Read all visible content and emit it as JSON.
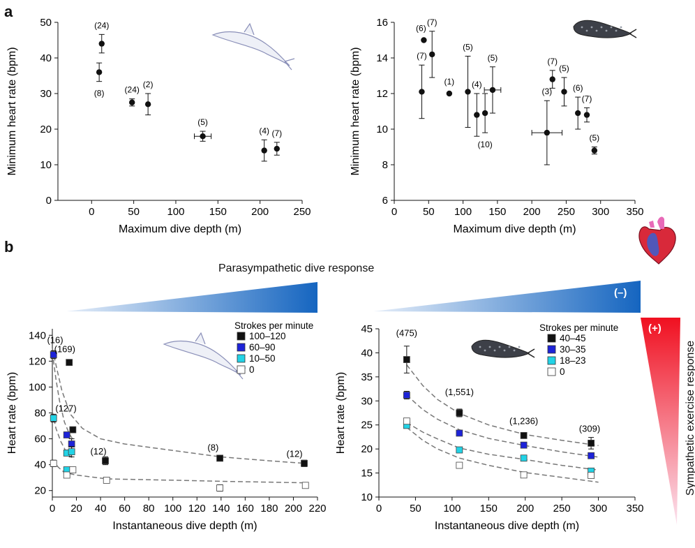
{
  "panels": {
    "a": "a",
    "b": "b"
  },
  "response_labels": {
    "parasympathetic": "Parasympathetic dive response",
    "sympathetic": "Sympathetic exercise response",
    "minus": "(–)",
    "plus": "(+)"
  },
  "colors": {
    "black": "#111111",
    "blue": "#1d23d8",
    "cyan": "#22d3e6",
    "white": "#ffffff",
    "para_gradient_end": "#1565c0",
    "para_gradient_start": "#d8e4f5",
    "symp_gradient_top": "#f01020",
    "symp_gradient_bottom": "#fbe0ee"
  },
  "icons": {
    "dolphin": "dolphin-illustration",
    "seal": "seal-illustration",
    "heart": "heart-illustration"
  },
  "chart_data": [
    {
      "id": "a-left",
      "type": "scatter",
      "title": "",
      "xlabel": "Maximum dive depth (m)",
      "ylabel": "Minimum heart rate (bpm)",
      "xlim": [
        -40,
        250
      ],
      "ylim": [
        0,
        50
      ],
      "xticks": [
        0,
        50,
        100,
        150,
        200,
        250
      ],
      "yticks": [
        0,
        10,
        20,
        30,
        40,
        50
      ],
      "points": [
        {
          "x": 12,
          "y": 44,
          "yerr": 2.6,
          "label": "(24)",
          "label_pos": "above"
        },
        {
          "x": 9,
          "y": 36,
          "yerr": 2.6,
          "label": "(8)",
          "label_pos": "below"
        },
        {
          "x": 48,
          "y": 27.5,
          "yerr": 1,
          "label": "(24)",
          "label_pos": "above"
        },
        {
          "x": 67,
          "y": 27,
          "yerr": 3,
          "label": "(2)",
          "label_pos": "above"
        },
        {
          "x": 132,
          "y": 18,
          "yerr": 1.4,
          "xerr": 10,
          "label": "(5)",
          "label_pos": "above"
        },
        {
          "x": 205,
          "y": 14,
          "yerr": 3,
          "label": "(4)",
          "label_pos": "above"
        },
        {
          "x": 220,
          "y": 14.5,
          "yerr": 1.8,
          "label": "(7)",
          "label_pos": "above"
        }
      ]
    },
    {
      "id": "a-right",
      "type": "scatter",
      "title": "",
      "xlabel": "Maximum dive depth (m)",
      "ylabel": "Minimum heart rate (bpm)",
      "xlim": [
        0,
        350
      ],
      "ylim": [
        6,
        16
      ],
      "xticks": [
        0,
        50,
        100,
        150,
        200,
        250,
        300,
        350
      ],
      "yticks": [
        6,
        8,
        10,
        12,
        14,
        16
      ],
      "points": [
        {
          "x": 43,
          "y": 15,
          "yerr": 0,
          "label": "(6)",
          "label_pos": "above",
          "label_dx": -4
        },
        {
          "x": 55,
          "y": 14.2,
          "yerr": 1.3,
          "label": "(7)",
          "label_pos": "above"
        },
        {
          "x": 40,
          "y": 12.1,
          "yerr": 1.5,
          "label": "(7)",
          "label_pos": "above"
        },
        {
          "x": 80,
          "y": 12,
          "yerr": 0,
          "label": "(1)",
          "label_pos": "above"
        },
        {
          "x": 107,
          "y": 12.1,
          "yerr": 2,
          "label": "(5)",
          "label_pos": "above"
        },
        {
          "x": 120,
          "y": 10.8,
          "yerr": 1.2,
          "label": "(4)",
          "label_pos": "above"
        },
        {
          "x": 132,
          "y": 10.9,
          "yerr": 1.1,
          "label": "(10)",
          "label_pos": "below"
        },
        {
          "x": 143,
          "y": 12.2,
          "yerr": 1.3,
          "xerr": 12,
          "label": "(5)",
          "label_pos": "above"
        },
        {
          "x": 222,
          "y": 9.8,
          "yerr": 1.8,
          "xerr": 22,
          "label": "(3)",
          "label_pos": "above"
        },
        {
          "x": 230,
          "y": 12.8,
          "yerr": 0.5,
          "label": "(7)",
          "label_pos": "above"
        },
        {
          "x": 247,
          "y": 12.1,
          "yerr": 0.8,
          "label": "(5)",
          "label_pos": "above"
        },
        {
          "x": 267,
          "y": 10.9,
          "yerr": 0.9,
          "label": "(6)",
          "label_pos": "above"
        },
        {
          "x": 280,
          "y": 10.8,
          "yerr": 0.4,
          "label": "(7)",
          "label_pos": "above"
        },
        {
          "x": 291,
          "y": 8.8,
          "yerr": 0.2,
          "label": "(5)",
          "label_pos": "above"
        }
      ]
    },
    {
      "id": "b-left",
      "type": "scatter",
      "title": "",
      "xlabel": "Instantaneous dive depth (m)",
      "ylabel": "Heart rate (bpm)",
      "xlim": [
        0,
        220
      ],
      "ylim": [
        15,
        145
      ],
      "xticks": [
        0,
        20,
        40,
        60,
        80,
        100,
        120,
        140,
        160,
        180,
        200,
        220
      ],
      "yticks": [
        20,
        40,
        60,
        80,
        100,
        120,
        140
      ],
      "legend": {
        "title": "Strokes per minute",
        "entries": [
          {
            "label": "100–120",
            "color": "black"
          },
          {
            "label": "60–90",
            "color": "blue"
          },
          {
            "label": "10–50",
            "color": "cyan"
          },
          {
            "label": "0",
            "color": "white"
          }
        ]
      },
      "annotations": [
        {
          "text": "(16)",
          "x": 0,
          "y": 134,
          "dx": 4
        },
        {
          "text": "(169)",
          "x": 8,
          "y": 127,
          "dx": 4
        },
        {
          "text": "(127)",
          "x": 9,
          "y": 81,
          "dx": 4
        },
        {
          "text": "(12)",
          "x": 44,
          "y": 48,
          "dx": -10
        },
        {
          "text": "(8)",
          "x": 138,
          "y": 51,
          "dx": -8
        },
        {
          "text": "(12)",
          "x": 209,
          "y": 46,
          "dx": -14
        }
      ],
      "series": [
        {
          "color": "black",
          "points": [
            {
              "x": 14,
              "y": 119
            },
            {
              "x": 17,
              "y": 67
            },
            {
              "x": 44,
              "y": 43,
              "yerr": 3
            },
            {
              "x": 139,
              "y": 45
            },
            {
              "x": 209,
              "y": 41,
              "yerr": 2.5
            }
          ]
        },
        {
          "color": "blue",
          "points": [
            {
              "x": 1,
              "y": 125,
              "yerr": 3
            },
            {
              "x": 12,
              "y": 63
            },
            {
              "x": 16,
              "y": 56,
              "yerr": 4
            }
          ]
        },
        {
          "color": "cyan",
          "points": [
            {
              "x": 1,
              "y": 76,
              "yerr": 3
            },
            {
              "x": 12,
              "y": 49
            },
            {
              "x": 16,
              "y": 50,
              "yerr": 4
            },
            {
              "x": 12,
              "y": 36
            }
          ]
        },
        {
          "color": "white",
          "points": [
            {
              "x": 1,
              "y": 41,
              "yerr": 2.5
            },
            {
              "x": 12,
              "y": 32
            },
            {
              "x": 17,
              "y": 36
            },
            {
              "x": 45,
              "y": 28
            },
            {
              "x": 139,
              "y": 22,
              "yerr": 2.5
            },
            {
              "x": 210,
              "y": 24
            }
          ]
        }
      ],
      "curves": [
        {
          "points": [
            [
              0,
              130
            ],
            [
              4,
              113
            ],
            [
              8,
              97
            ],
            [
              15,
              79
            ],
            [
              25,
              68
            ],
            [
              40,
              60
            ],
            [
              60,
              56
            ],
            [
              100,
              51
            ],
            [
              140,
              46
            ],
            [
              180,
              43
            ],
            [
              210,
              41
            ]
          ]
        },
        {
          "points": [
            [
              0,
              127
            ],
            [
              3,
              106
            ],
            [
              6,
              89
            ],
            [
              10,
              73
            ],
            [
              14,
              64
            ],
            [
              18,
              58
            ]
          ]
        },
        {
          "points": [
            [
              0,
              81
            ],
            [
              3,
              68
            ],
            [
              7,
              58
            ],
            [
              12,
              49
            ],
            [
              18,
              44
            ]
          ]
        },
        {
          "points": [
            [
              0,
              44
            ],
            [
              5,
              38
            ],
            [
              10,
              34
            ],
            [
              20,
              32
            ],
            [
              45,
              29
            ],
            [
              100,
              28
            ],
            [
              150,
              27
            ],
            [
              210,
              26
            ]
          ]
        }
      ]
    },
    {
      "id": "b-right",
      "type": "scatter",
      "title": "",
      "xlabel": "Instantaneous dive depth (m)",
      "ylabel": "Heart rate (bpm)",
      "xlim": [
        0,
        350
      ],
      "ylim": [
        10,
        45
      ],
      "xticks": [
        0,
        50,
        100,
        150,
        200,
        250,
        300,
        350
      ],
      "yticks": [
        10,
        15,
        20,
        25,
        30,
        35,
        40,
        45
      ],
      "legend": {
        "title": "Strokes per minute",
        "entries": [
          {
            "label": "40–45",
            "color": "black"
          },
          {
            "label": "30–35",
            "color": "blue"
          },
          {
            "label": "18–23",
            "color": "cyan"
          },
          {
            "label": "0",
            "color": "white"
          }
        ]
      },
      "annotations": [
        {
          "text": "(475)",
          "x": 38,
          "y": 43.5,
          "dx": 0
        },
        {
          "text": "(1,551)",
          "x": 110,
          "y": 31.2,
          "dx": 0
        },
        {
          "text": "(1,236)",
          "x": 198,
          "y": 25.2,
          "dx": 0
        },
        {
          "text": "(309)",
          "x": 288,
          "y": 23.6,
          "dx": 0
        }
      ],
      "series": [
        {
          "color": "black",
          "points": [
            {
              "x": 38,
              "y": 38.6,
              "yerr": 2.8
            },
            {
              "x": 110,
              "y": 27.5,
              "yerr": 0.8
            },
            {
              "x": 198,
              "y": 22.8,
              "yerr": 0.4
            },
            {
              "x": 290,
              "y": 21.2,
              "yerr": 1.2
            }
          ]
        },
        {
          "color": "blue",
          "points": [
            {
              "x": 38,
              "y": 31.2,
              "yerr": 0.8
            },
            {
              "x": 110,
              "y": 23.3,
              "yerr": 0.4
            },
            {
              "x": 198,
              "y": 20.8,
              "yerr": 0.3
            },
            {
              "x": 290,
              "y": 18.6,
              "yerr": 0.6
            }
          ]
        },
        {
          "color": "cyan",
          "points": [
            {
              "x": 38,
              "y": 24.9,
              "yerr": 0.4
            },
            {
              "x": 110,
              "y": 19.8,
              "yerr": 0.3
            },
            {
              "x": 198,
              "y": 18.1,
              "yerr": 0.4
            },
            {
              "x": 290,
              "y": 15.4,
              "yerr": 0.4
            }
          ]
        },
        {
          "color": "white",
          "points": [
            {
              "x": 38,
              "y": 25.8,
              "yerr": 0.6
            },
            {
              "x": 110,
              "y": 16.6,
              "yerr": 0.3
            },
            {
              "x": 198,
              "y": 14.6,
              "yerr": 0.3
            },
            {
              "x": 290,
              "y": 14.5,
              "yerr": 0.4
            }
          ]
        }
      ],
      "curves": [
        {
          "points": [
            [
              38,
              37.5
            ],
            [
              60,
              33.2
            ],
            [
              80,
              30.3
            ],
            [
              110,
              27.4
            ],
            [
              150,
              25
            ],
            [
              200,
              23
            ],
            [
              250,
              21.8
            ],
            [
              300,
              20.7
            ]
          ]
        },
        {
          "points": [
            [
              38,
              31.2
            ],
            [
              60,
              28.2
            ],
            [
              80,
              26.2
            ],
            [
              110,
              24
            ],
            [
              150,
              22.2
            ],
            [
              200,
              20.7
            ],
            [
              250,
              19.4
            ],
            [
              300,
              18.3
            ]
          ]
        },
        {
          "points": [
            [
              38,
              25.5
            ],
            [
              60,
              23.5
            ],
            [
              80,
              22.1
            ],
            [
              110,
              20.2
            ],
            [
              150,
              18.9
            ],
            [
              200,
              17.8
            ],
            [
              250,
              16.6
            ],
            [
              300,
              15.6
            ]
          ]
        },
        {
          "points": [
            [
              38,
              24.5
            ],
            [
              60,
              21.8
            ],
            [
              80,
              20
            ],
            [
              110,
              18.1
            ],
            [
              150,
              16.6
            ],
            [
              200,
              15.1
            ],
            [
              250,
              14.1
            ],
            [
              300,
              13.1
            ]
          ]
        }
      ]
    }
  ]
}
